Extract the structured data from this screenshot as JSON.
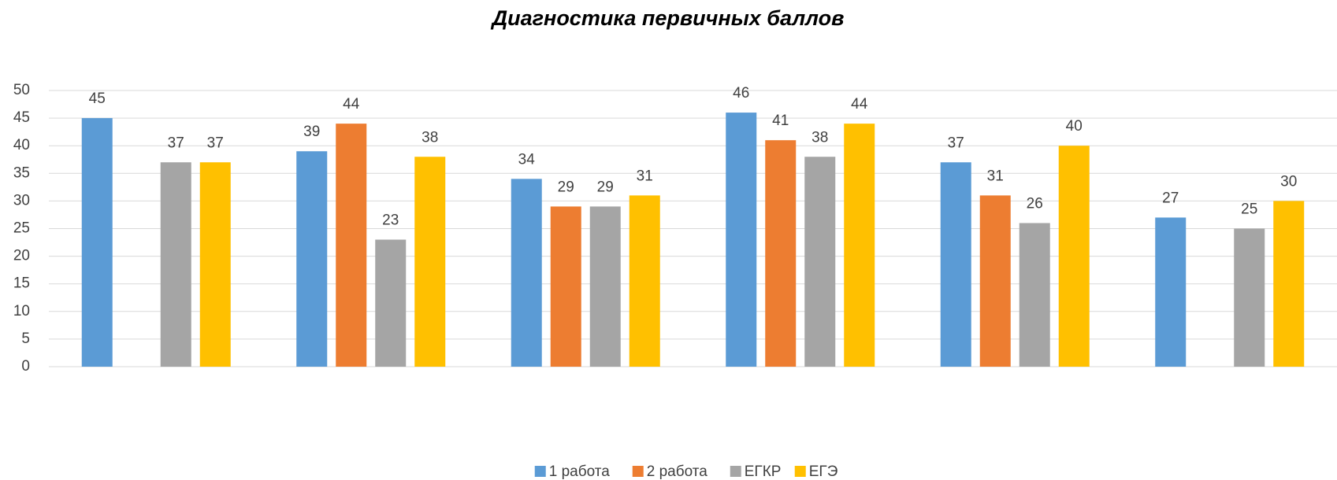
{
  "chart_data": {
    "type": "bar",
    "title": "Диагностика первичных баллов",
    "categories": [
      null,
      null,
      null,
      null,
      null,
      null
    ],
    "series": [
      {
        "name": "1 работа",
        "color": "#5b9bd5",
        "values": [
          45,
          39,
          34,
          46,
          37,
          27
        ]
      },
      {
        "name": "2 работа",
        "color": "#ed7d31",
        "values": [
          null,
          44,
          29,
          41,
          31,
          null
        ]
      },
      {
        "name": "ЕГКР",
        "color": "#a5a5a5",
        "values": [
          37,
          23,
          29,
          38,
          26,
          25
        ]
      },
      {
        "name": "ЕГЭ",
        "color": "#ffc000",
        "values": [
          37,
          38,
          31,
          44,
          40,
          30
        ]
      }
    ],
    "ylim": [
      0,
      50
    ],
    "yticks": [
      0,
      5,
      10,
      15,
      20,
      25,
      30,
      35,
      40,
      45,
      50
    ],
    "grid": true,
    "legend": "bottom"
  }
}
